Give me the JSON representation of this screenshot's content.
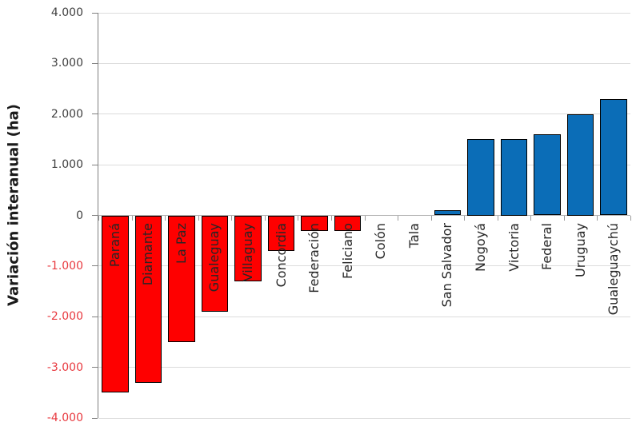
{
  "chart_data": {
    "type": "bar",
    "title": "",
    "xlabel": "",
    "ylabel": "Variación interanual (ha)",
    "ylim": [
      -4000,
      4000
    ],
    "grid": true,
    "legend": "none",
    "categories": [
      "Paraná",
      "Diamante",
      "La Paz",
      "Gualeguay",
      "Villaguay",
      "Concordia",
      "Federación",
      "Feliciano",
      "Colón",
      "Tala",
      "San Salvador",
      "Nogoyá",
      "Victoria",
      "Federal",
      "Uruguay",
      "Gualeguaychú"
    ],
    "values": [
      -3500,
      -3300,
      -2500,
      -1900,
      -1300,
      -700,
      -300,
      -300,
      0,
      0,
      100,
      1500,
      1500,
      1600,
      2000,
      2300
    ],
    "yticks": [
      {
        "value": 4000,
        "label": "4.000"
      },
      {
        "value": 3000,
        "label": "3.000"
      },
      {
        "value": 2000,
        "label": "2.000"
      },
      {
        "value": 1000,
        "label": "1.000"
      },
      {
        "value": 0,
        "label": "0"
      },
      {
        "value": -1000,
        "label": "-1.000"
      },
      {
        "value": -2000,
        "label": "-2.000"
      },
      {
        "value": -3000,
        "label": "-3.000"
      },
      {
        "value": -4000,
        "label": "-4.000"
      }
    ],
    "colors": {
      "negative_bar": "#fe0000",
      "positive_bar": "#0b6db7",
      "bar_border": "#000000",
      "gridline": "#dcdcdc",
      "zero_line": "#b3b3b3",
      "spine": "#808080",
      "tick_label": "#3f3f3f",
      "tick_label_negative": "#e8393f",
      "category_label": "#262626"
    }
  }
}
